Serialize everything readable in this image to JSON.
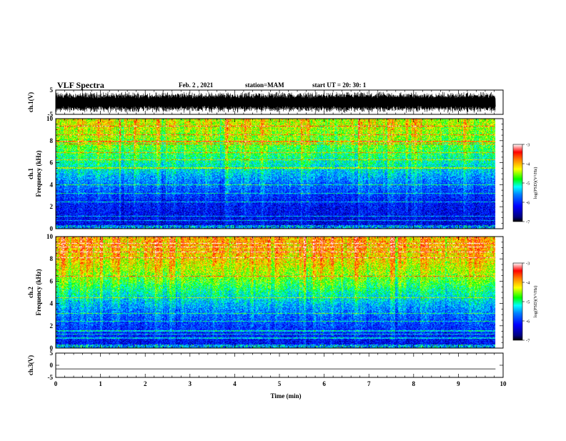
{
  "header": {
    "title": "VLF Spectra",
    "date": "Feb. 2 , 2021",
    "station": "station=MAM",
    "start_ut": "start UT =  20: 30: 1"
  },
  "colors": {
    "waveform": "#000000",
    "colormap": [
      "#000080",
      "#0000ff",
      "#0080ff",
      "#00ffff",
      "#00ff00",
      "#ffff00",
      "#ff8000",
      "#ff0000",
      "#ffffff"
    ]
  },
  "chart_data": [
    {
      "type": "line",
      "name": "ch1-waveform",
      "ylabel": "ch.1(V)",
      "xlim": [
        0,
        10
      ],
      "ylim": [
        -5,
        5
      ],
      "yticks": [
        "5",
        "-5"
      ],
      "xticks": [
        0,
        1,
        2,
        3,
        4,
        5,
        6,
        7,
        8,
        9,
        10
      ],
      "data_end_min": 9.83,
      "amplitude_range_v": [
        -4.5,
        4.5
      ]
    },
    {
      "type": "heatmap",
      "name": "ch1-spectrogram",
      "ylabel": "ch.1",
      "ylabel2": "Frequency (kHz)",
      "xlim": [
        0,
        10
      ],
      "ylim": [
        0,
        10
      ],
      "yticks": [
        "0",
        "2",
        "4",
        "6",
        "8",
        "10"
      ],
      "data_end_min": 9.83,
      "colorbar": {
        "label": "log(PSD)(V²/Hz)",
        "range": [
          -7,
          -3
        ],
        "ticks": [
          "-3",
          "-4",
          "-5",
          "-6",
          "-7"
        ]
      },
      "mean_log_psd_by_freq_khz": [
        {
          "f": 0.5,
          "v": -6.6
        },
        {
          "f": 1.5,
          "v": -6.5
        },
        {
          "f": 2.5,
          "v": -6.4
        },
        {
          "f": 3.5,
          "v": -6.1
        },
        {
          "f": 4.5,
          "v": -5.8
        },
        {
          "f": 5.5,
          "v": -5.4
        },
        {
          "f": 6.5,
          "v": -5.1
        },
        {
          "f": 7.5,
          "v": -4.8
        },
        {
          "f": 8.5,
          "v": -4.6
        },
        {
          "f": 9.5,
          "v": -4.4
        }
      ]
    },
    {
      "type": "heatmap",
      "name": "ch2-spectrogram",
      "ylabel": "ch.2",
      "ylabel2": "Frequency (kHz)",
      "xlim": [
        0,
        10
      ],
      "ylim": [
        0,
        10
      ],
      "yticks": [
        "0",
        "2",
        "4",
        "6",
        "8",
        "10"
      ],
      "data_end_min": 9.83,
      "colorbar": {
        "label": "log(PSD)(V²/Hz)",
        "range": [
          -7,
          -3
        ],
        "ticks": [
          "-3",
          "-4",
          "-5",
          "-6",
          "-7"
        ]
      },
      "mean_log_psd_by_freq_khz": [
        {
          "f": 0.5,
          "v": -6.5
        },
        {
          "f": 1.5,
          "v": -6.3
        },
        {
          "f": 2.5,
          "v": -6.1
        },
        {
          "f": 3.5,
          "v": -5.8
        },
        {
          "f": 4.5,
          "v": -5.4
        },
        {
          "f": 5.5,
          "v": -5.0
        },
        {
          "f": 6.5,
          "v": -4.6
        },
        {
          "f": 7.5,
          "v": -4.3
        },
        {
          "f": 8.5,
          "v": -4.1
        },
        {
          "f": 9.5,
          "v": -4.0
        }
      ]
    },
    {
      "type": "line",
      "name": "ch3-waveform",
      "ylabel": "ch.3(V)",
      "xlabel": "Time (min)",
      "xlim": [
        0,
        10
      ],
      "ylim": [
        -5,
        5
      ],
      "yticks": [
        "5",
        "0",
        "-5"
      ],
      "xticks": [
        "0",
        "1",
        "2",
        "3",
        "4",
        "5",
        "6",
        "7",
        "8",
        "9",
        "10"
      ],
      "data_end_min": 9.83,
      "constant_value_v": -1.5
    }
  ]
}
